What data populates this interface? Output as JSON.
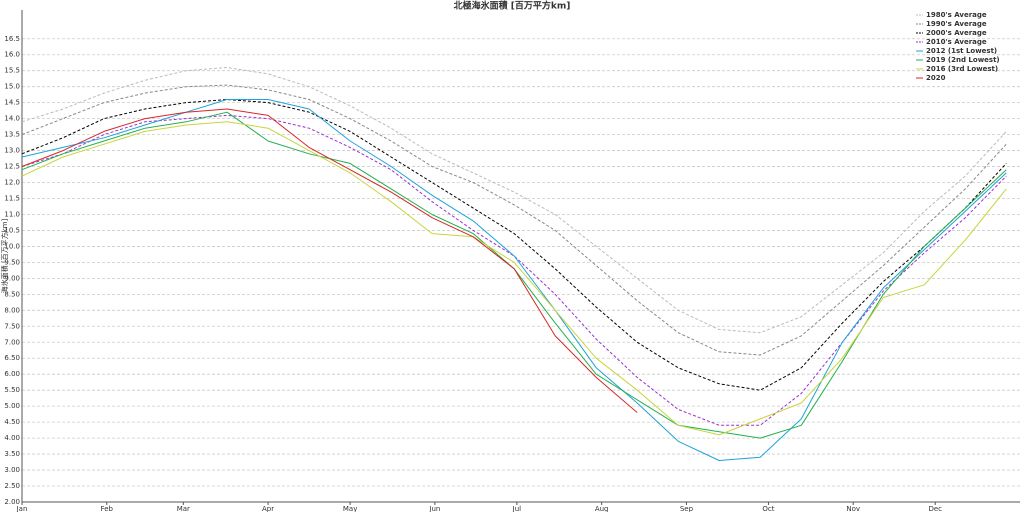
{
  "chart_data": {
    "type": "line",
    "title": "北極海氷面積 [百万平方km]",
    "y_label": "海氷面積 [百万平方km]",
    "x": [
      1,
      16,
      31,
      46,
      61,
      76,
      91,
      106,
      121,
      136,
      151,
      166,
      181,
      196,
      211,
      226,
      241,
      256,
      271,
      286,
      301,
      316,
      331,
      346,
      361
    ],
    "xlim": [
      1,
      366
    ],
    "xticks": [
      {
        "value": 1,
        "label": "Jan"
      },
      {
        "value": 32,
        "label": "Feb"
      },
      {
        "value": 60,
        "label": "Mar"
      },
      {
        "value": 91,
        "label": "Apr"
      },
      {
        "value": 121,
        "label": "May"
      },
      {
        "value": 152,
        "label": "Jun"
      },
      {
        "value": 182,
        "label": "Jul"
      },
      {
        "value": 213,
        "label": "Aug"
      },
      {
        "value": 244,
        "label": "Sep"
      },
      {
        "value": 274,
        "label": "Oct"
      },
      {
        "value": 305,
        "label": "Nov"
      },
      {
        "value": 335,
        "label": "Dec"
      }
    ],
    "ylim": [
      2,
      17.4
    ],
    "yticks": [
      {
        "value": 2,
        "label": "2.00"
      },
      {
        "value": 2.5,
        "label": "2.50"
      },
      {
        "value": 3,
        "label": "3.00"
      },
      {
        "value": 3.5,
        "label": "3.50"
      },
      {
        "value": 4,
        "label": "4.00"
      },
      {
        "value": 4.5,
        "label": "4.50"
      },
      {
        "value": 5,
        "label": "5.00"
      },
      {
        "value": 5.5,
        "label": "5.50"
      },
      {
        "value": 6,
        "label": "6.00"
      },
      {
        "value": 6.5,
        "label": "6.50"
      },
      {
        "value": 7,
        "label": "7.00"
      },
      {
        "value": 7.5,
        "label": "7.50"
      },
      {
        "value": 8,
        "label": "8.00"
      },
      {
        "value": 8.5,
        "label": "8.50"
      },
      {
        "value": 9,
        "label": "9.00"
      },
      {
        "value": 9.5,
        "label": "9.50"
      },
      {
        "value": 10,
        "label": "10.0"
      },
      10.5,
      {
        "value": 11,
        "label": "11.0"
      },
      11.5,
      {
        "value": 12,
        "label": "12.0"
      },
      12.5,
      {
        "value": 13,
        "label": "13.0"
      },
      13.5,
      {
        "value": 14,
        "label": "14.0"
      },
      14.5,
      {
        "value": 15,
        "label": "15.0"
      },
      15.5,
      {
        "value": 16,
        "label": "16.0"
      },
      16.5
    ],
    "grid": true,
    "legend": "top-right",
    "series": [
      {
        "name": "1980's Average",
        "color": "#bbbbbb",
        "dashed": true,
        "values": [
          13.9,
          14.3,
          14.8,
          15.2,
          15.5,
          15.6,
          15.4,
          15.0,
          14.4,
          13.7,
          12.9,
          12.3,
          11.7,
          11.0,
          10.0,
          9.0,
          8.0,
          7.4,
          7.3,
          7.8,
          8.8,
          9.8,
          11.1,
          12.2,
          13.6
        ]
      },
      {
        "name": "1990's Average",
        "color": "#888888",
        "dashed": true,
        "values": [
          13.5,
          14.0,
          14.5,
          14.8,
          15.0,
          15.05,
          14.9,
          14.6,
          14.0,
          13.3,
          12.5,
          12.0,
          11.3,
          10.5,
          9.4,
          8.3,
          7.3,
          6.7,
          6.6,
          7.2,
          8.3,
          9.4,
          10.6,
          11.8,
          13.2
        ]
      },
      {
        "name": "2000's Average",
        "color": "#000000",
        "dashed": true,
        "values": [
          12.9,
          13.4,
          14.0,
          14.3,
          14.5,
          14.6,
          14.5,
          14.2,
          13.6,
          12.8,
          12.0,
          11.2,
          10.4,
          9.3,
          8.1,
          7.0,
          6.2,
          5.7,
          5.5,
          6.2,
          7.6,
          8.9,
          10.0,
          11.2,
          12.6
        ]
      },
      {
        "name": "2010's Average",
        "color": "#9b2fd1",
        "dashed": true,
        "values": [
          12.5,
          12.9,
          13.5,
          13.9,
          14.0,
          14.1,
          14.0,
          13.7,
          13.1,
          12.4,
          11.4,
          10.5,
          9.7,
          8.5,
          7.1,
          5.9,
          4.9,
          4.4,
          4.4,
          5.4,
          7.0,
          8.6,
          9.8,
          10.9,
          12.2
        ]
      },
      {
        "name": "2012 (1st Lowest)",
        "color": "#1fa3d9",
        "dashed": false,
        "values": [
          12.8,
          13.1,
          13.4,
          13.8,
          14.2,
          14.6,
          14.6,
          14.3,
          13.3,
          12.5,
          11.6,
          10.8,
          9.7,
          8.0,
          6.2,
          5.1,
          3.9,
          3.3,
          3.4,
          4.6,
          7.0,
          8.7,
          9.9,
          11.1,
          12.3
        ]
      },
      {
        "name": "2019 (2nd Lowest)",
        "color": "#22b14c",
        "dashed": false,
        "values": [
          12.4,
          12.9,
          13.3,
          13.7,
          13.9,
          14.2,
          13.3,
          12.9,
          12.6,
          11.8,
          11.0,
          10.4,
          9.3,
          7.6,
          6.0,
          5.2,
          4.4,
          4.2,
          4.0,
          4.4,
          6.4,
          8.5,
          10.0,
          11.2,
          12.4
        ]
      },
      {
        "name": "2016 (3rd Lowest)",
        "color": "#c9d43c",
        "dashed": false,
        "values": [
          12.2,
          12.8,
          13.2,
          13.6,
          13.8,
          13.9,
          13.7,
          13.0,
          12.3,
          11.4,
          10.4,
          10.3,
          9.5,
          8.0,
          6.5,
          5.5,
          4.4,
          4.1,
          4.6,
          5.1,
          6.5,
          8.4,
          8.8,
          10.2,
          11.8
        ]
      },
      {
        "name": "2020",
        "color": "#d62728",
        "dashed": false,
        "values": [
          12.5,
          13.0,
          13.6,
          14.0,
          14.2,
          14.3,
          14.1,
          13.1,
          12.4,
          11.7,
          10.9,
          10.3,
          9.3,
          7.2,
          5.9,
          4.8,
          null,
          null,
          null,
          null,
          null,
          null,
          null,
          null,
          null
        ]
      }
    ]
  }
}
